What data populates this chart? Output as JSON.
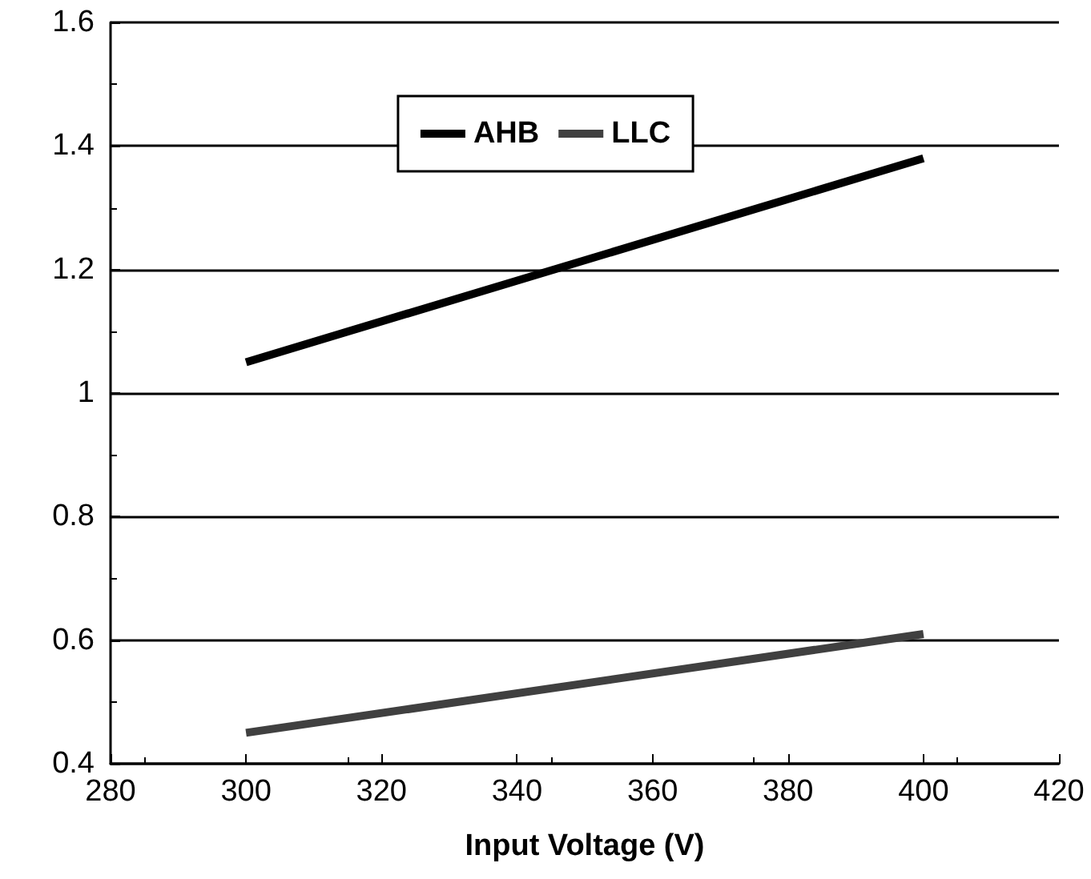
{
  "chart_data": {
    "type": "line",
    "xlabel": "Input Voltage (V)",
    "x": [
      300,
      400
    ],
    "series": [
      {
        "name": "AHB",
        "color": "#000000",
        "values": [
          1.05,
          1.38
        ]
      },
      {
        "name": "LLC",
        "color": "#404040",
        "values": [
          0.45,
          0.61
        ]
      }
    ],
    "xlim": [
      280,
      420
    ],
    "xticks": [
      280,
      300,
      320,
      340,
      360,
      380,
      400,
      420
    ],
    "ylim": [
      0.4,
      1.6
    ],
    "yticks": [
      0.4,
      0.6,
      0.8,
      1,
      1.2,
      1.4,
      1.6
    ],
    "grid": "y",
    "legend": "top",
    "marker": "none",
    "line_style": "solid"
  }
}
